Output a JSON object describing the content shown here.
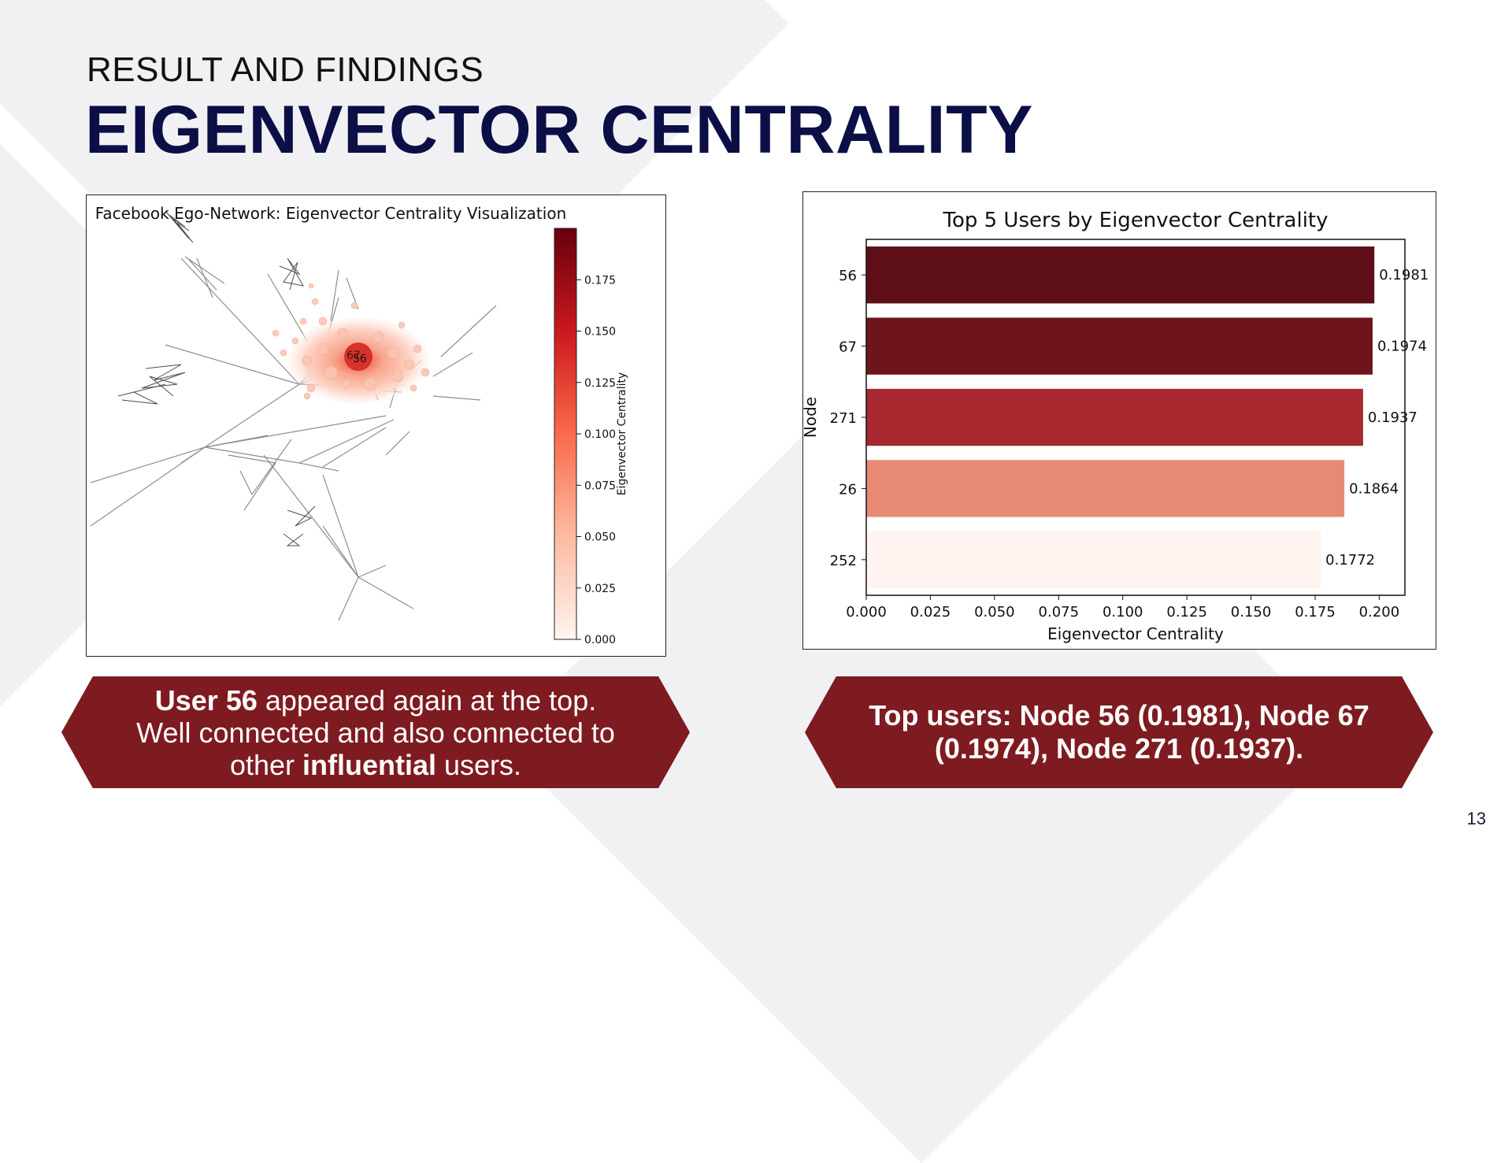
{
  "header": {
    "subtitle": "RESULT AND FINDINGS",
    "title": "EIGENVECTOR CENTRALITY"
  },
  "network_chart": {
    "title": "Facebook Ego-Network: Eigenvector Centrality Visualization",
    "colorbar_label": "Eigenvector Centrality",
    "colorbar_ticks": [
      "0.175",
      "0.150",
      "0.125",
      "0.100",
      "0.075",
      "0.050",
      "0.025",
      "0.000"
    ],
    "colormap": "Reds"
  },
  "chart_data": {
    "type": "bar",
    "orientation": "horizontal",
    "title": "Top 5 Users by Eigenvector Centrality",
    "xlabel": "Eigenvector Centrality",
    "ylabel": "Node",
    "categories": [
      "56",
      "67",
      "271",
      "26",
      "252"
    ],
    "values": [
      0.1981,
      0.1974,
      0.1937,
      0.1864,
      0.1772
    ],
    "data_labels": [
      "0.1981",
      "0.1974",
      "0.1937",
      "0.1864",
      "0.1772"
    ],
    "colors": [
      "#5f0f18",
      "#6e141d",
      "#a7282f",
      "#e78a73",
      "#fff3ef"
    ],
    "xlim": [
      0,
      0.21
    ],
    "xticks": [
      "0.000",
      "0.025",
      "0.050",
      "0.075",
      "0.100",
      "0.125",
      "0.150",
      "0.175",
      "0.200"
    ],
    "grid": false
  },
  "callouts": {
    "left": {
      "bold1": "User 56",
      "text1": " appeared again at the top.",
      "text2": "Well connected and also connected to",
      "text3": "other ",
      "bold2": "influential",
      "text4": " users."
    },
    "right": {
      "line1": "Top users: Node 56 (0.1981), Node 67",
      "line2": "(0.1974), Node 271 (0.1937)."
    }
  },
  "page_number": "13",
  "colors": {
    "title": "#0c0f45",
    "callout_bg": "#7e1b20",
    "background_shape": "#f1f1f4"
  }
}
